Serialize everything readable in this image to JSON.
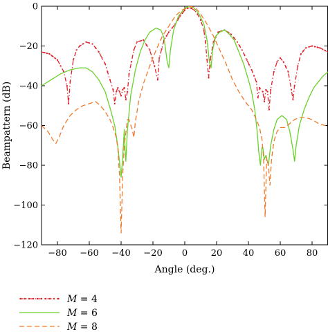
{
  "chart_data": {
    "type": "line",
    "xlabel": "Angle (deg.)",
    "ylabel": "Beampattern (dB)",
    "xlim": [
      -90,
      90
    ],
    "ylim": [
      -120,
      0
    ],
    "xticks": [
      "−80",
      "−60",
      "−40",
      "−20",
      "0",
      "20",
      "40",
      "60",
      "80"
    ],
    "yticks": [
      "0",
      "−20",
      "−40",
      "−60",
      "−80",
      "−100",
      "−120"
    ],
    "grid": false,
    "legend_position": "bottom-left",
    "series": [
      {
        "name": "M = 4",
        "legend_var": "M",
        "legend_value": "= 4",
        "color": "#e0202a",
        "style": "dash-dot-markers",
        "points": [
          [
            -90,
            -23
          ],
          [
            -85,
            -24
          ],
          [
            -80,
            -27
          ],
          [
            -76,
            -33
          ],
          [
            -74,
            -40
          ],
          [
            -73,
            -49
          ],
          [
            -72,
            -38
          ],
          [
            -70,
            -27
          ],
          [
            -68,
            -22
          ],
          [
            -66,
            -20
          ],
          [
            -62,
            -18
          ],
          [
            -58,
            -19
          ],
          [
            -54,
            -23
          ],
          [
            -50,
            -29
          ],
          [
            -47,
            -37
          ],
          [
            -45,
            -42
          ],
          [
            -44,
            -49
          ],
          [
            -43,
            -43
          ],
          [
            -42,
            -41
          ],
          [
            -41,
            -43
          ],
          [
            -40,
            -45
          ],
          [
            -39,
            -42
          ],
          [
            -38,
            -41
          ],
          [
            -37,
            -47
          ],
          [
            -36,
            -43
          ],
          [
            -35,
            -34
          ],
          [
            -32,
            -22
          ],
          [
            -30,
            -18
          ],
          [
            -26,
            -17
          ],
          [
            -22,
            -22
          ],
          [
            -19,
            -30
          ],
          [
            -17,
            -37
          ],
          [
            -16,
            -26
          ],
          [
            -13,
            -17
          ],
          [
            -10,
            -13
          ],
          [
            -6,
            -9
          ],
          [
            -3,
            -5
          ],
          [
            0,
            -2
          ],
          [
            2,
            -1
          ],
          [
            4,
            -1
          ],
          [
            6,
            -2
          ],
          [
            8,
            -4
          ],
          [
            10,
            -7
          ],
          [
            12,
            -12
          ],
          [
            13,
            -18
          ],
          [
            14,
            -27
          ],
          [
            15,
            -36
          ],
          [
            16,
            -27
          ],
          [
            18,
            -18
          ],
          [
            21,
            -13
          ],
          [
            25,
            -12
          ],
          [
            29,
            -14
          ],
          [
            33,
            -18
          ],
          [
            36,
            -22
          ],
          [
            39,
            -27
          ],
          [
            42,
            -32
          ],
          [
            45,
            -38
          ],
          [
            46,
            -46
          ],
          [
            47,
            -41
          ],
          [
            49,
            -43
          ],
          [
            50,
            -48
          ],
          [
            51,
            -42
          ],
          [
            52,
            -43
          ],
          [
            53,
            -52
          ],
          [
            54,
            -42
          ],
          [
            56,
            -33
          ],
          [
            58,
            -28
          ],
          [
            60,
            -26
          ],
          [
            62,
            -28
          ],
          [
            65,
            -33
          ],
          [
            67,
            -42
          ],
          [
            68,
            -47
          ],
          [
            69,
            -40
          ],
          [
            71,
            -30
          ],
          [
            73,
            -24
          ],
          [
            76,
            -21
          ],
          [
            80,
            -20
          ],
          [
            85,
            -21
          ],
          [
            90,
            -23
          ]
        ]
      },
      {
        "name": "M = 6",
        "legend_var": "M",
        "legend_value": "= 6",
        "color": "#6ad12a",
        "style": "solid",
        "points": [
          [
            -90,
            -40
          ],
          [
            -84,
            -37
          ],
          [
            -78,
            -34
          ],
          [
            -72,
            -32
          ],
          [
            -66,
            -31
          ],
          [
            -62,
            -31
          ],
          [
            -58,
            -33
          ],
          [
            -54,
            -37
          ],
          [
            -50,
            -43
          ],
          [
            -47,
            -51
          ],
          [
            -44,
            -60
          ],
          [
            -42,
            -71
          ],
          [
            -41,
            -78
          ],
          [
            -40,
            -86
          ],
          [
            -39,
            -76
          ],
          [
            -38,
            -62
          ],
          [
            -37.5,
            -72
          ],
          [
            -37,
            -78
          ],
          [
            -36,
            -62
          ],
          [
            -34,
            -45
          ],
          [
            -31,
            -32
          ],
          [
            -28,
            -23
          ],
          [
            -25,
            -17
          ],
          [
            -22,
            -13
          ],
          [
            -18,
            -11
          ],
          [
            -15,
            -12
          ],
          [
            -13,
            -16
          ],
          [
            -11,
            -28
          ],
          [
            -10,
            -31
          ],
          [
            -9,
            -22
          ],
          [
            -7,
            -12
          ],
          [
            -4,
            -5
          ],
          [
            0,
            -1
          ],
          [
            3,
            0
          ],
          [
            6,
            -1
          ],
          [
            9,
            -4
          ],
          [
            12,
            -9
          ],
          [
            14,
            -17
          ],
          [
            15.5,
            -28
          ],
          [
            16.5,
            -31
          ],
          [
            17.5,
            -22
          ],
          [
            19.5,
            -15
          ],
          [
            22,
            -13
          ],
          [
            25,
            -12
          ],
          [
            28,
            -14
          ],
          [
            31,
            -17
          ],
          [
            34,
            -23
          ],
          [
            37,
            -29
          ],
          [
            40,
            -37
          ],
          [
            42,
            -43
          ],
          [
            44,
            -52
          ],
          [
            45.5,
            -63
          ],
          [
            46.5,
            -73
          ],
          [
            47.5,
            -80
          ],
          [
            48.5,
            -71
          ],
          [
            49,
            -71
          ],
          [
            50,
            -77
          ],
          [
            51,
            -75
          ],
          [
            52.5,
            -80
          ],
          [
            54,
            -70
          ],
          [
            56,
            -62
          ],
          [
            58,
            -57
          ],
          [
            61,
            -55
          ],
          [
            64,
            -57
          ],
          [
            66,
            -63
          ],
          [
            68,
            -72
          ],
          [
            69,
            -78
          ],
          [
            70,
            -70
          ],
          [
            72,
            -60
          ],
          [
            75,
            -52
          ],
          [
            78,
            -46
          ],
          [
            81,
            -41
          ],
          [
            84,
            -38
          ],
          [
            87,
            -35
          ],
          [
            90,
            -33
          ]
        ]
      },
      {
        "name": "M = 8",
        "legend_var": "M",
        "legend_value": "= 8",
        "color": "#f07a2c",
        "style": "dashed",
        "points": [
          [
            -90,
            -60
          ],
          [
            -86,
            -63
          ],
          [
            -83,
            -67
          ],
          [
            -81,
            -69
          ],
          [
            -79,
            -66
          ],
          [
            -76,
            -60
          ],
          [
            -72,
            -55
          ],
          [
            -68,
            -52
          ],
          [
            -64,
            -50
          ],
          [
            -60,
            -49
          ],
          [
            -56,
            -48
          ],
          [
            -53,
            -50
          ],
          [
            -50,
            -53
          ],
          [
            -47,
            -57
          ],
          [
            -45,
            -61
          ],
          [
            -43,
            -66
          ],
          [
            -42,
            -72
          ],
          [
            -41,
            -85
          ],
          [
            -40,
            -114
          ],
          [
            -39,
            -85
          ],
          [
            -38,
            -70
          ],
          [
            -36,
            -57
          ],
          [
            -35,
            -57
          ],
          [
            -33,
            -62
          ],
          [
            -32,
            -66
          ],
          [
            -31,
            -58
          ],
          [
            -29,
            -48
          ],
          [
            -26,
            -39
          ],
          [
            -22,
            -30
          ],
          [
            -18,
            -22
          ],
          [
            -14,
            -15
          ],
          [
            -10,
            -10
          ],
          [
            -6,
            -5
          ],
          [
            -2,
            -2
          ],
          [
            1,
            -1
          ],
          [
            4,
            0
          ],
          [
            7,
            -1
          ],
          [
            10,
            -4
          ],
          [
            14,
            -9
          ],
          [
            18,
            -15
          ],
          [
            22,
            -22
          ],
          [
            26,
            -29
          ],
          [
            30,
            -37
          ],
          [
            34,
            -43
          ],
          [
            38,
            -48
          ],
          [
            42,
            -52
          ],
          [
            45,
            -57
          ],
          [
            47,
            -61
          ],
          [
            48.5,
            -67
          ],
          [
            49.5,
            -76
          ],
          [
            50.5,
            -106
          ],
          [
            51.5,
            -76
          ],
          [
            52.5,
            -80
          ],
          [
            53.5,
            -90
          ],
          [
            54.5,
            -77
          ],
          [
            56,
            -68
          ],
          [
            58,
            -63
          ],
          [
            60,
            -61
          ],
          [
            63,
            -61
          ],
          [
            66,
            -59
          ],
          [
            69,
            -57
          ],
          [
            72,
            -56
          ],
          [
            76,
            -56
          ],
          [
            80,
            -57
          ],
          [
            84,
            -59
          ],
          [
            88,
            -60
          ],
          [
            90,
            -60
          ]
        ]
      }
    ]
  }
}
